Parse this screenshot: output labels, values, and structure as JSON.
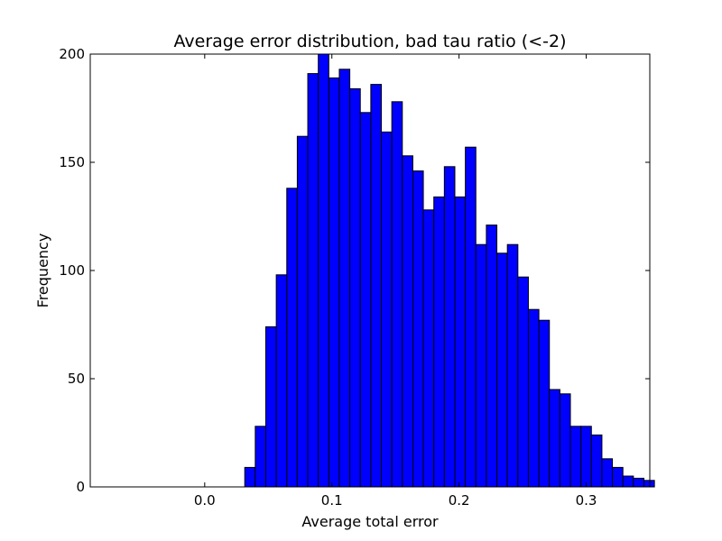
{
  "chart_data": {
    "type": "bar",
    "title": "Average error distribution, bad tau ratio (<-2)",
    "xlabel": "Average total error",
    "ylabel": "Frequency",
    "xlim": [
      -0.09,
      0.35
    ],
    "ylim": [
      0,
      200
    ],
    "x_ticks": [
      0.0,
      0.1,
      0.2,
      0.3
    ],
    "x_tick_labels": [
      "0.0",
      "0.1",
      "0.2",
      "0.3"
    ],
    "y_ticks": [
      0,
      50,
      100,
      150,
      200
    ],
    "y_tick_labels": [
      "0",
      "50",
      "100",
      "150",
      "200"
    ],
    "bin_start": 0.0315,
    "bin_width": 0.00826,
    "values": [
      9,
      28,
      74,
      98,
      138,
      162,
      191,
      200,
      189,
      193,
      184,
      173,
      186,
      164,
      178,
      153,
      146,
      128,
      134,
      148,
      134,
      157,
      112,
      121,
      108,
      112,
      97,
      82,
      77,
      45,
      43,
      28,
      28,
      24,
      13,
      9,
      5,
      4,
      3
    ],
    "bar_color": "#0000ff",
    "edge_color": "#000000",
    "grid": false,
    "legend": "none"
  }
}
